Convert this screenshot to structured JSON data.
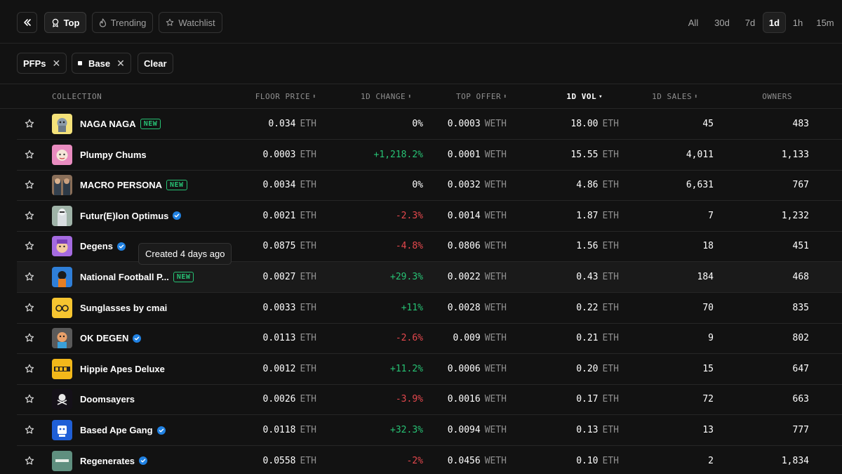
{
  "toolbar": {
    "tabs": [
      {
        "label": "Top",
        "icon": "medal-icon",
        "active": true
      },
      {
        "label": "Trending",
        "icon": "flame-icon",
        "active": false
      },
      {
        "label": "Watchlist",
        "icon": "star-icon",
        "active": false
      }
    ],
    "time_tabs": [
      {
        "label": "All",
        "active": false
      },
      {
        "label": "30d",
        "active": false
      },
      {
        "label": "7d",
        "active": false
      },
      {
        "label": "1d",
        "active": true
      },
      {
        "label": "1h",
        "active": false
      },
      {
        "label": "15m",
        "active": false
      }
    ]
  },
  "filters": {
    "chips": [
      {
        "label": "PFPs",
        "has_square": false
      },
      {
        "label": "Base",
        "has_square": true
      }
    ],
    "clear_label": "Clear"
  },
  "table": {
    "headers": {
      "collection": "COLLECTION",
      "floor": "FLOOR PRICE",
      "change": "1D CHANGE",
      "offer": "TOP OFFER",
      "vol": "1D VOL",
      "sales": "1D SALES",
      "owners": "OWNERS"
    },
    "rows": [
      {
        "name": "NAGA NAGA",
        "new": true,
        "verified": false,
        "floor": "0.034",
        "change": "0%",
        "change_dir": "flat",
        "offer": "0.0003",
        "vol": "18.00",
        "sales": "45",
        "owners": "483"
      },
      {
        "name": "Plumpy Chums",
        "new": false,
        "verified": false,
        "floor": "0.0003",
        "change": "+1,218.2%",
        "change_dir": "pos",
        "offer": "0.0001",
        "vol": "15.55",
        "sales": "4,011",
        "owners": "1,133"
      },
      {
        "name": "MACRO PERSONA",
        "new": true,
        "verified": false,
        "floor": "0.0034",
        "change": "0%",
        "change_dir": "flat",
        "offer": "0.0032",
        "vol": "4.86",
        "sales": "6,631",
        "owners": "767"
      },
      {
        "name": "Futur(E)lon Optimus",
        "new": false,
        "verified": true,
        "floor": "0.0021",
        "change": "-2.3%",
        "change_dir": "neg",
        "offer": "0.0014",
        "vol": "1.87",
        "sales": "7",
        "owners": "1,232"
      },
      {
        "name": "Degens",
        "new": false,
        "verified": true,
        "floor": "0.0875",
        "change": "-4.8%",
        "change_dir": "neg",
        "offer": "0.0806",
        "vol": "1.56",
        "sales": "18",
        "owners": "451"
      },
      {
        "name": "National Football P...",
        "new": true,
        "verified": false,
        "floor": "0.0027",
        "change": "+29.3%",
        "change_dir": "pos",
        "offer": "0.0022",
        "vol": "0.43",
        "sales": "184",
        "owners": "468"
      },
      {
        "name": "Sunglasses by cmai",
        "new": false,
        "verified": false,
        "floor": "0.0033",
        "change": "+11%",
        "change_dir": "pos",
        "offer": "0.0028",
        "vol": "0.22",
        "sales": "70",
        "owners": "835"
      },
      {
        "name": "OK DEGEN",
        "new": false,
        "verified": true,
        "floor": "0.0113",
        "change": "-2.6%",
        "change_dir": "neg",
        "offer": "0.009",
        "vol": "0.21",
        "sales": "9",
        "owners": "802"
      },
      {
        "name": "Hippie Apes Deluxe",
        "new": false,
        "verified": false,
        "floor": "0.0012",
        "change": "+11.2%",
        "change_dir": "pos",
        "offer": "0.0006",
        "vol": "0.20",
        "sales": "15",
        "owners": "647"
      },
      {
        "name": "Doomsayers",
        "new": false,
        "verified": false,
        "floor": "0.0026",
        "change": "-3.9%",
        "change_dir": "neg",
        "offer": "0.0016",
        "vol": "0.17",
        "sales": "72",
        "owners": "663"
      },
      {
        "name": "Based Ape Gang",
        "new": false,
        "verified": true,
        "floor": "0.0118",
        "change": "+32.3%",
        "change_dir": "pos",
        "offer": "0.0094",
        "vol": "0.13",
        "sales": "13",
        "owners": "777"
      },
      {
        "name": "Regenerates",
        "new": false,
        "verified": true,
        "floor": "0.0558",
        "change": "-2%",
        "change_dir": "neg",
        "offer": "0.0456",
        "vol": "0.10",
        "sales": "2",
        "owners": "1,834"
      }
    ],
    "units": {
      "eth": "ETH",
      "weth": "WETH"
    },
    "new_badge": "NEW"
  },
  "tooltip": {
    "text": "Created 4 days ago"
  },
  "colors": {
    "background": "#121212",
    "positive": "#27c274",
    "negative": "#e5484d",
    "verified": "#2081e2",
    "muted": "#8f8f8f"
  }
}
